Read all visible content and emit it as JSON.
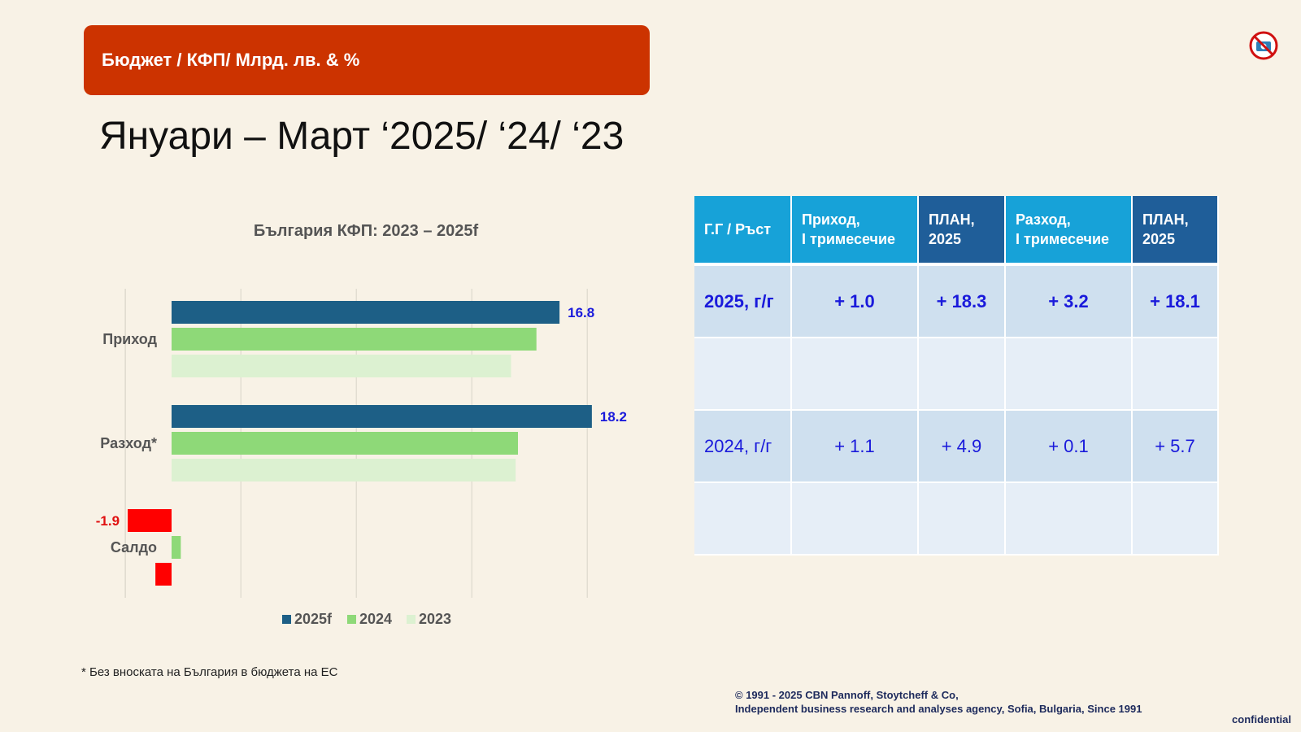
{
  "header": {
    "banner": "Бюджет / КФП/ Млрд. лв. & %",
    "title": "Януари – Март ‘2025/ ‘24/ ‘23"
  },
  "colors": {
    "s2025": "#1d5f86",
    "s2024": "#8ed978",
    "s2023": "#dcf1d1",
    "negative": "#ff0000"
  },
  "chart_data": {
    "type": "bar",
    "orientation": "horizontal",
    "title": "България КФП: 2023 – 2025f",
    "categories": [
      "Приход",
      "Разход*",
      "Салдо"
    ],
    "series": [
      {
        "name": "2025f",
        "values": [
          16.8,
          18.2,
          -1.9
        ]
      },
      {
        "name": "2024",
        "values": [
          15.8,
          15.0,
          0.4
        ]
      },
      {
        "name": "2023",
        "values": [
          14.7,
          14.9,
          -0.7
        ]
      }
    ],
    "data_labels": {
      "2025f": [
        "16.8",
        "18.2",
        "-1.9"
      ]
    },
    "xlim": [
      -2,
      20
    ],
    "grid": true,
    "legend": "bottom"
  },
  "table": {
    "headers": [
      "Г.Г / Ръст",
      "Приход,\nI тримесечие",
      "ПЛАН,\n2025",
      "Разход,\nI тримесечие",
      "ПЛАН,\n2025"
    ],
    "rows": [
      [
        "2025, г/г",
        "+ 1.0",
        "+ 18.3",
        "+ 3.2",
        "+ 18.1"
      ],
      [
        "",
        "",
        "",
        "",
        ""
      ],
      [
        "2024, г/г",
        "+ 1.1",
        "+ 4.9",
        "+ 0.1",
        "+ 5.7"
      ],
      [
        "",
        "",
        "",
        "",
        ""
      ]
    ]
  },
  "footer": {
    "footnote": "* Без вноската на България в бюджета на ЕС",
    "copyright_line1": "© 1991 - 2025 CBN Pannoff, Stoytcheff & Co,",
    "copyright_line2": "Independent business research and analyses agency, Sofia, Bulgaria, Since 1991",
    "confidential": "confidential"
  }
}
